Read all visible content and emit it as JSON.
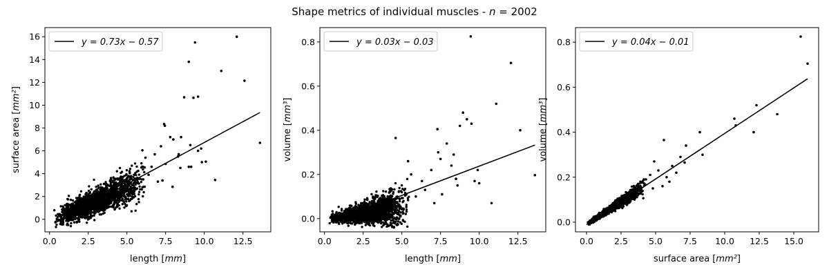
{
  "figure": {
    "title": "Shape metrics of individual muscles - n = 2002",
    "title_main": "Shape metrics of individual muscles - ",
    "title_italic": "n",
    "title_tail": " = 2002"
  },
  "chart_data": [
    {
      "type": "scatter",
      "xlabel": "length [mm]",
      "ylabel": "surface area [mm²]",
      "xlim": [
        -0.3,
        14.3
      ],
      "ylim": [
        -1.1,
        16.8
      ],
      "xticks": [
        0.0,
        2.5,
        5.0,
        7.5,
        10.0,
        12.5
      ],
      "xtick_labels": [
        "0.0",
        "2.5",
        "5.0",
        "7.5",
        "10.0",
        "12.5"
      ],
      "yticks": [
        0,
        2,
        4,
        6,
        8,
        10,
        12,
        14,
        16
      ],
      "ytick_labels": [
        "0",
        "2",
        "4",
        "6",
        "8",
        "10",
        "12",
        "14",
        "16"
      ],
      "legend": {
        "label": "y = 0.73x − 0.57",
        "position": "top-left"
      },
      "fit": {
        "slope": 0.73,
        "intercept": -0.57,
        "x_range": [
          0.4,
          13.6
        ]
      },
      "cloud": {
        "seed": 11,
        "count": 1950,
        "x_min": 0.3,
        "x_mode": 2.5,
        "x_max": 6.2,
        "slope": 0.6,
        "intercept": -0.2,
        "noise": 0.4,
        "growth": 0.12
      },
      "points": [
        [
          12.1,
          16.0
        ],
        [
          9.4,
          15.5
        ],
        [
          9.0,
          13.8
        ],
        [
          11.1,
          13.0
        ],
        [
          12.6,
          12.15
        ],
        [
          8.7,
          10.7
        ],
        [
          9.3,
          10.65
        ],
        [
          9.6,
          10.75
        ],
        [
          13.6,
          6.7
        ],
        [
          10.7,
          3.45
        ],
        [
          10.1,
          5.05
        ],
        [
          9.85,
          5.0
        ],
        [
          9.6,
          6.0
        ],
        [
          9.8,
          6.2
        ],
        [
          9.1,
          6.5
        ],
        [
          8.3,
          5.5
        ],
        [
          8.35,
          5.7
        ],
        [
          7.4,
          8.35
        ],
        [
          7.45,
          8.2
        ],
        [
          7.8,
          7.2
        ],
        [
          8.0,
          7.0
        ],
        [
          8.5,
          7.2
        ],
        [
          8.45,
          4.5
        ],
        [
          9.0,
          4.6
        ],
        [
          9.15,
          4.6
        ],
        [
          7.95,
          2.85
        ],
        [
          7.3,
          3.4
        ],
        [
          6.0,
          6.05
        ],
        [
          6.8,
          5.7
        ],
        [
          6.2,
          5.4
        ],
        [
          7.5,
          4.85
        ],
        [
          7.0,
          3.3
        ],
        [
          6.6,
          4.6
        ],
        [
          6.4,
          3.9
        ],
        [
          7.2,
          6.4
        ]
      ]
    },
    {
      "type": "scatter",
      "xlabel": "length [mm]",
      "ylabel": "volume [mm³]",
      "xlim": [
        -0.3,
        14.3
      ],
      "ylim": [
        -0.06,
        0.865
      ],
      "xticks": [
        0.0,
        2.5,
        5.0,
        7.5,
        10.0,
        12.5
      ],
      "xtick_labels": [
        "0.0",
        "2.5",
        "5.0",
        "7.5",
        "10.0",
        "12.5"
      ],
      "yticks": [
        0.0,
        0.2,
        0.4,
        0.6,
        0.8
      ],
      "ytick_labels": [
        "0.0",
        "0.2",
        "0.4",
        "0.6",
        "0.8"
      ],
      "legend": {
        "label": "y = 0.03x − 0.03",
        "position": "top-left"
      },
      "fit": {
        "slope": 0.0265,
        "intercept": -0.0275,
        "x_range": [
          0.4,
          13.6
        ]
      },
      "cloud": {
        "seed": 23,
        "count": 1950,
        "x_min": 0.3,
        "x_mode": 2.5,
        "x_max": 5.5,
        "slope": 0.012,
        "intercept": -0.005,
        "noise": 0.012,
        "growth": 0.012
      },
      "points": [
        [
          9.45,
          0.825
        ],
        [
          12.05,
          0.705
        ],
        [
          11.1,
          0.52
        ],
        [
          8.95,
          0.48
        ],
        [
          9.2,
          0.45
        ],
        [
          9.5,
          0.43
        ],
        [
          8.75,
          0.42
        ],
        [
          7.3,
          0.405
        ],
        [
          12.65,
          0.4
        ],
        [
          4.6,
          0.365
        ],
        [
          7.9,
          0.34
        ],
        [
          8.35,
          0.29
        ],
        [
          7.35,
          0.3
        ],
        [
          7.5,
          0.27
        ],
        [
          6.9,
          0.22
        ],
        [
          8.2,
          0.24
        ],
        [
          8.5,
          0.18
        ],
        [
          9.9,
          0.22
        ],
        [
          9.7,
          0.17
        ],
        [
          10.0,
          0.16
        ],
        [
          13.6,
          0.197
        ],
        [
          10.8,
          0.07
        ],
        [
          8.6,
          0.15
        ],
        [
          7.6,
          0.11
        ],
        [
          6.3,
          0.17
        ],
        [
          5.4,
          0.26
        ],
        [
          5.9,
          0.1
        ],
        [
          6.5,
          0.13
        ],
        [
          7.1,
          0.07
        ],
        [
          5.6,
          0.2
        ]
      ]
    },
    {
      "type": "scatter",
      "xlabel": "surface area [mm²]",
      "ylabel": "volume [mm³]",
      "xlim": [
        -0.8,
        16.8
      ],
      "ylim": [
        -0.043,
        0.865
      ],
      "xticks": [
        0.0,
        2.5,
        5.0,
        7.5,
        10.0,
        12.5,
        15.0
      ],
      "xtick_labels": [
        "0.0",
        "2.5",
        "5.0",
        "7.5",
        "10.0",
        "12.5",
        "15.0"
      ],
      "yticks": [
        0.0,
        0.2,
        0.4,
        0.6,
        0.8
      ],
      "ytick_labels": [
        "0.0",
        "0.2",
        "0.4",
        "0.6",
        "0.8"
      ],
      "legend": {
        "label": "y = 0.04x − 0.01",
        "position": "top-left"
      },
      "fit": {
        "slope": 0.0405,
        "intercept": -0.0105,
        "x_range": [
          0.0,
          16.0
        ]
      },
      "cloud": {
        "seed": 37,
        "count": 1950,
        "x_min": 0.05,
        "x_mode": 1.0,
        "x_max": 4.3,
        "slope": 0.04,
        "intercept": -0.01,
        "noise": 0.004,
        "growth": 0.008
      },
      "points": [
        [
          15.5,
          0.825
        ],
        [
          16.0,
          0.705
        ],
        [
          10.7,
          0.46
        ],
        [
          10.8,
          0.43
        ],
        [
          12.3,
          0.52
        ],
        [
          13.8,
          0.48
        ],
        [
          12.1,
          0.4
        ],
        [
          8.2,
          0.4
        ],
        [
          5.6,
          0.365
        ],
        [
          7.2,
          0.34
        ],
        [
          8.4,
          0.3
        ],
        [
          6.8,
          0.29
        ],
        [
          7.1,
          0.265
        ],
        [
          6.2,
          0.25
        ],
        [
          6.5,
          0.22
        ],
        [
          5.8,
          0.2
        ],
        [
          6.0,
          0.18
        ],
        [
          4.9,
          0.27
        ],
        [
          5.2,
          0.23
        ],
        [
          4.6,
          0.21
        ],
        [
          5.5,
          0.16
        ],
        [
          4.3,
          0.19
        ],
        [
          4.8,
          0.15
        ],
        [
          3.9,
          0.18
        ]
      ]
    }
  ]
}
